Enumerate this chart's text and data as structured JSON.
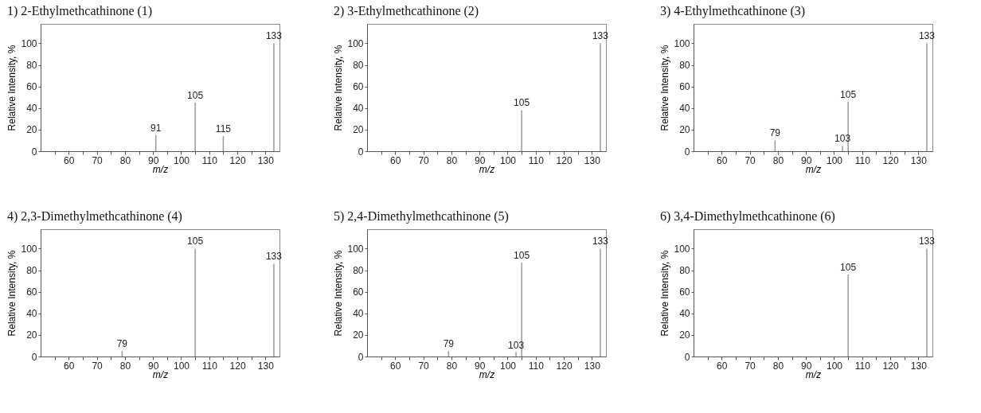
{
  "chart_data": [
    {
      "type": "bar",
      "title": "1) 2-Ethylmethcathinone (1)",
      "xlabel": "m/z",
      "ylabel": "Relative Intensity, %",
      "x": [
        91,
        105,
        115,
        133
      ],
      "values": [
        15,
        45,
        14,
        100
      ],
      "annotations": [
        {
          "text": "91",
          "x": 91,
          "y": 15
        },
        {
          "text": "105",
          "x": 105,
          "y": 45
        },
        {
          "text": "115",
          "x": 115,
          "y": 14
        },
        {
          "text": "133",
          "x": 133,
          "y": 100
        }
      ],
      "color": "#999999",
      "xlim": [
        50,
        135
      ],
      "ylim": [
        0,
        118
      ],
      "xticks": [
        {
          "value": 55,
          "label": null
        },
        60,
        {
          "value": 65,
          "label": null
        },
        70,
        {
          "value": 75,
          "label": null
        },
        80,
        {
          "value": 85,
          "label": null
        },
        90,
        {
          "value": 95,
          "label": null
        },
        100,
        {
          "value": 105,
          "label": null
        },
        110,
        {
          "value": 115,
          "label": null
        },
        120,
        {
          "value": 125,
          "label": null
        },
        130
      ],
      "yticks": [
        0,
        20,
        40,
        60,
        80,
        100
      ]
    },
    {
      "type": "bar",
      "title": "2) 3-Ethylmethcathinone (2)",
      "xlabel": "m/z",
      "ylabel": "Relative Intensity, %",
      "x": [
        105,
        133
      ],
      "values": [
        38,
        100
      ],
      "annotations": [
        {
          "text": "105",
          "x": 105,
          "y": 38
        },
        {
          "text": "133",
          "x": 133,
          "y": 100
        }
      ],
      "color": "#999999",
      "xlim": [
        50,
        135
      ],
      "ylim": [
        0,
        118
      ],
      "xticks": [
        {
          "value": 55,
          "label": null
        },
        60,
        {
          "value": 65,
          "label": null
        },
        70,
        {
          "value": 75,
          "label": null
        },
        80,
        {
          "value": 85,
          "label": null
        },
        90,
        {
          "value": 95,
          "label": null
        },
        100,
        {
          "value": 105,
          "label": null
        },
        110,
        {
          "value": 115,
          "label": null
        },
        120,
        {
          "value": 125,
          "label": null
        },
        130
      ],
      "yticks": [
        0,
        20,
        40,
        60,
        80,
        100
      ]
    },
    {
      "type": "bar",
      "title": "3) 4-Ethylmethcathinone (3)",
      "xlabel": "m/z",
      "ylabel": "Relative Intensity, %",
      "x": [
        79,
        103,
        105,
        133
      ],
      "values": [
        10,
        5,
        46,
        100
      ],
      "annotations": [
        {
          "text": "79",
          "x": 79,
          "y": 10
        },
        {
          "text": "103",
          "x": 103,
          "y": 5
        },
        {
          "text": "105",
          "x": 105,
          "y": 46
        },
        {
          "text": "133",
          "x": 133,
          "y": 100
        }
      ],
      "color": "#999999",
      "xlim": [
        50,
        135
      ],
      "ylim": [
        0,
        118
      ],
      "xticks": [
        {
          "value": 55,
          "label": null
        },
        60,
        {
          "value": 65,
          "label": null
        },
        70,
        {
          "value": 75,
          "label": null
        },
        80,
        {
          "value": 85,
          "label": null
        },
        90,
        {
          "value": 95,
          "label": null
        },
        100,
        {
          "value": 105,
          "label": null
        },
        110,
        {
          "value": 115,
          "label": null
        },
        120,
        {
          "value": 125,
          "label": null
        },
        130
      ],
      "yticks": [
        0,
        20,
        40,
        60,
        80,
        100
      ]
    },
    {
      "type": "bar",
      "title": "4) 2,3-Dimethylmethcathinone (4)",
      "xlabel": "m/z",
      "ylabel": "Relative Intensity, %",
      "x": [
        79,
        105,
        133
      ],
      "values": [
        5,
        100,
        86
      ],
      "annotations": [
        {
          "text": "79",
          "x": 79,
          "y": 5
        },
        {
          "text": "105",
          "x": 105,
          "y": 100
        },
        {
          "text": "133",
          "x": 133,
          "y": 86
        }
      ],
      "color": "#999999",
      "xlim": [
        50,
        135
      ],
      "ylim": [
        0,
        118
      ],
      "xticks": [
        {
          "value": 55,
          "label": null
        },
        60,
        {
          "value": 65,
          "label": null
        },
        70,
        {
          "value": 75,
          "label": null
        },
        80,
        {
          "value": 85,
          "label": null
        },
        90,
        {
          "value": 95,
          "label": null
        },
        100,
        {
          "value": 105,
          "label": null
        },
        110,
        {
          "value": 115,
          "label": null
        },
        120,
        {
          "value": 125,
          "label": null
        },
        130
      ],
      "yticks": [
        0,
        20,
        40,
        60,
        80,
        100
      ]
    },
    {
      "type": "bar",
      "title": "5) 2,4-Dimethylmethcathinone (5)",
      "xlabel": "m/z",
      "ylabel": "Relative Intensity, %",
      "x": [
        79,
        103,
        105,
        133
      ],
      "values": [
        5,
        4,
        87,
        100
      ],
      "annotations": [
        {
          "text": "79",
          "x": 79,
          "y": 5
        },
        {
          "text": "103",
          "x": 103,
          "y": 4
        },
        {
          "text": "105",
          "x": 105,
          "y": 87
        },
        {
          "text": "133",
          "x": 133,
          "y": 100
        }
      ],
      "color": "#999999",
      "xlim": [
        50,
        135
      ],
      "ylim": [
        0,
        118
      ],
      "xticks": [
        {
          "value": 55,
          "label": null
        },
        60,
        {
          "value": 65,
          "label": null
        },
        70,
        {
          "value": 75,
          "label": null
        },
        80,
        {
          "value": 85,
          "label": null
        },
        90,
        {
          "value": 95,
          "label": null
        },
        100,
        {
          "value": 105,
          "label": null
        },
        110,
        {
          "value": 115,
          "label": null
        },
        120,
        {
          "value": 125,
          "label": null
        },
        130
      ],
      "yticks": [
        0,
        20,
        40,
        60,
        80,
        100
      ]
    },
    {
      "type": "bar",
      "title": "6) 3,4-Dimethylmethcathinone (6)",
      "xlabel": "m/z",
      "ylabel": "Relative Intensity, %",
      "x": [
        105,
        133
      ],
      "values": [
        76,
        100
      ],
      "annotations": [
        {
          "text": "105",
          "x": 105,
          "y": 76
        },
        {
          "text": "133",
          "x": 133,
          "y": 100
        }
      ],
      "color": "#999999",
      "xlim": [
        50,
        135
      ],
      "ylim": [
        0,
        118
      ],
      "xticks": [
        {
          "value": 55,
          "label": null
        },
        60,
        {
          "value": 65,
          "label": null
        },
        70,
        {
          "value": 75,
          "label": null
        },
        80,
        {
          "value": 85,
          "label": null
        },
        90,
        {
          "value": 95,
          "label": null
        },
        100,
        {
          "value": 105,
          "label": null
        },
        110,
        {
          "value": 115,
          "label": null
        },
        120,
        {
          "value": 125,
          "label": null
        },
        130
      ],
      "yticks": [
        0,
        20,
        40,
        60,
        80,
        100
      ]
    }
  ]
}
